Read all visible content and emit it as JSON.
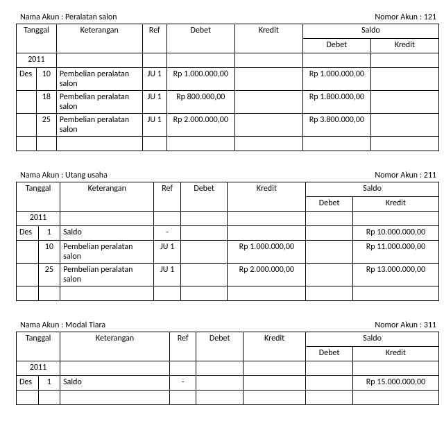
{
  "labels": {
    "nama_akun": "Nama Akun",
    "nomor_akun": "Nomor Akun",
    "tanggal": "Tanggal",
    "keterangan": "Keterangan",
    "ref": "Ref",
    "debet": "Debet",
    "kredit": "Kredit",
    "saldo": "Saldo"
  },
  "colors": {
    "border": "#000000",
    "background": "#ffffff",
    "text": "#000000"
  },
  "font": {
    "family": "Calibri",
    "size_pt": 9
  },
  "ledgers": [
    {
      "account_name": "Peralatan salon",
      "account_no": "121",
      "year": "2011",
      "col_widths": {
        "mon": 28,
        "day": 28,
        "ket": 120,
        "ref": 34,
        "debet": 95,
        "kredit": 95,
        "sdeb": 95,
        "skre": 95
      },
      "rows": [
        {
          "mon": "Des",
          "day": "10",
          "ket": "Pembelian peralatan salon",
          "ref": "JU 1",
          "debet": "Rp 1.000.000,00",
          "kredit": "",
          "sdeb": "Rp 1.000.000,00",
          "skre": ""
        },
        {
          "mon": "",
          "day": "18",
          "ket": "Pembelian peralatan salon",
          "ref": "JU 1",
          "debet": "Rp 800.000,00",
          "kredit": "",
          "sdeb": "Rp 1.800.000,00",
          "skre": ""
        },
        {
          "mon": "",
          "day": "25",
          "ket": "Pembelian peralatan salon",
          "ref": "JU 1",
          "debet": "Rp 2.000.000,00",
          "kredit": "",
          "sdeb": "Rp 3.800.000,00",
          "skre": ""
        },
        {
          "mon": "",
          "day": "",
          "ket": "",
          "ref": "",
          "debet": "",
          "kredit": "",
          "sdeb": "",
          "skre": ""
        }
      ]
    },
    {
      "account_name": "Utang usaha",
      "account_no": "211",
      "year": "2011",
      "col_widths": {
        "mon": 28,
        "day": 28,
        "ket": 120,
        "ref": 34,
        "debet": 60,
        "kredit": 100,
        "sdeb": 60,
        "skre": 110
      },
      "rows": [
        {
          "mon": "Des",
          "day": "1",
          "ket": "Saldo",
          "ref": "-",
          "debet": "",
          "kredit": "",
          "sdeb": "",
          "skre": "Rp 10.000.000,00"
        },
        {
          "mon": "",
          "day": "10",
          "ket": "Pembelian peralatan salon",
          "ref": "JU 1",
          "debet": "",
          "kredit": "Rp 1.000.000,00",
          "sdeb": "",
          "skre": "Rp 11.000.000,00"
        },
        {
          "mon": "",
          "day": "25",
          "ket": "Pembelian peralatan salon",
          "ref": "JU 1",
          "debet": "",
          "kredit": "Rp 2.000.000,00",
          "sdeb": "",
          "skre": "Rp 13.000.000,00"
        },
        {
          "mon": "",
          "day": "",
          "ket": "",
          "ref": "",
          "debet": "",
          "kredit": "",
          "sdeb": "",
          "skre": ""
        }
      ]
    },
    {
      "account_name": "Modal Tiara",
      "account_no": "311",
      "year": "2011",
      "col_widths": {
        "mon": 28,
        "day": 28,
        "ket": 140,
        "ref": 34,
        "debet": 60,
        "kredit": 80,
        "sdeb": 60,
        "skre": 110
      },
      "rows": [
        {
          "mon": "Des",
          "day": "1",
          "ket": "Saldo",
          "ref": "-",
          "debet": "",
          "kredit": "",
          "sdeb": "",
          "skre": "Rp 15.000.000,00"
        },
        {
          "mon": "",
          "day": "",
          "ket": "",
          "ref": "",
          "debet": "",
          "kredit": "",
          "sdeb": "",
          "skre": ""
        }
      ]
    }
  ]
}
